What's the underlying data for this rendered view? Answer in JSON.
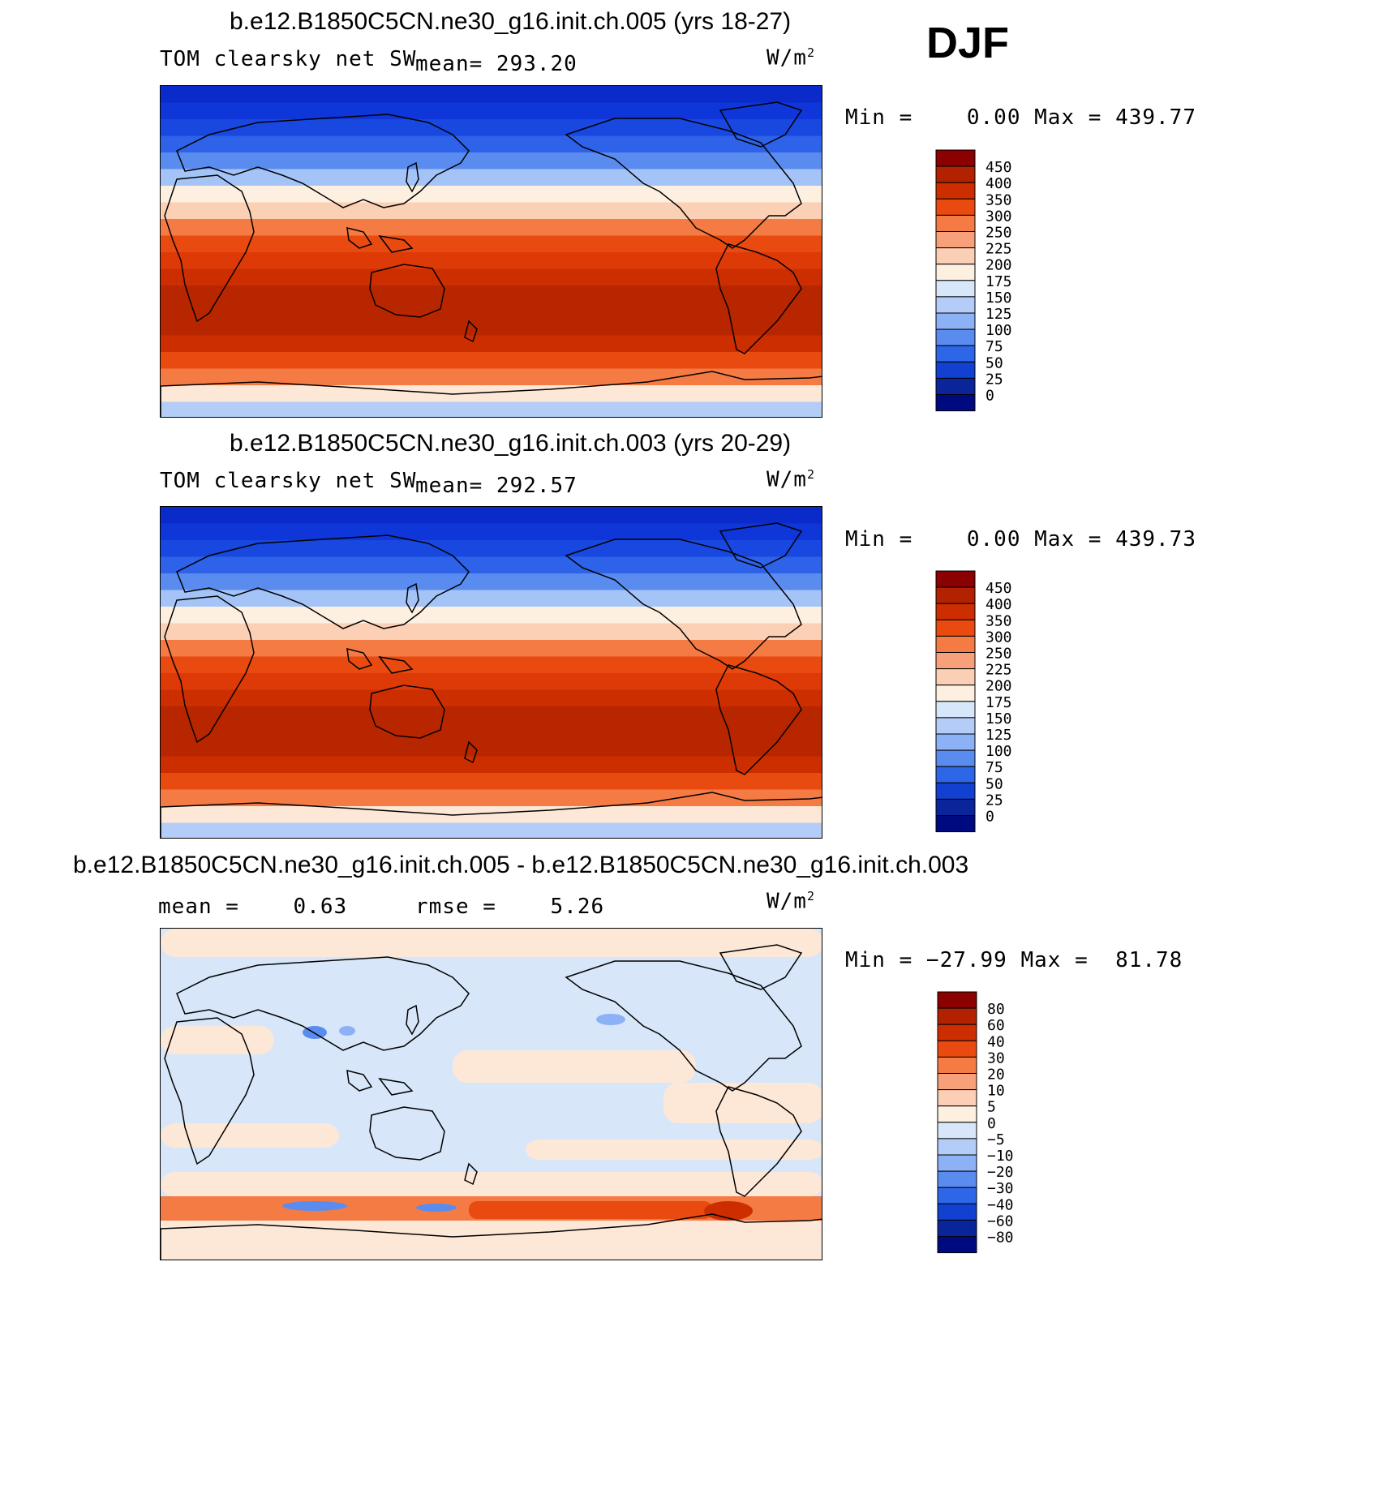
{
  "season": "DJF",
  "units_base": "W/m",
  "units_exp": "2",
  "panels": [
    {
      "title": "b.e12.B1850C5CN.ne30_g16.init.ch.005 (yrs 18-27)",
      "left_label": "TOM clearsky net SW",
      "stat1": "mean= 293.20",
      "stat2": "",
      "minmax": "Min =    0.00 Max = 439.77"
    },
    {
      "title": "b.e12.B1850C5CN.ne30_g16.init.ch.003 (yrs 20-29)",
      "left_label": "TOM clearsky net SW",
      "stat1": "mean= 292.57",
      "stat2": "",
      "minmax": "Min =    0.00 Max = 439.73"
    },
    {
      "title": "b.e12.B1850C5CN.ne30_g16.init.ch.005 - b.e12.B1850C5CN.ne30_g16.init.ch.003",
      "left_label": "mean =    0.63",
      "stat1": "rmse =    5.26",
      "stat2": "",
      "minmax": "Min = −27.99 Max =  81.78"
    }
  ],
  "colorbar_abs": {
    "labels": [
      "450",
      "400",
      "350",
      "300",
      "250",
      "225",
      "200",
      "175",
      "150",
      "125",
      "100",
      "75",
      "50",
      "25",
      "0"
    ],
    "colors": [
      "#8B0000",
      "#B22200",
      "#CC2E00",
      "#E84A10",
      "#F57B45",
      "#F8A07A",
      "#FBCFB5",
      "#FDF0E0",
      "#D7E6F8",
      "#B3CDF8",
      "#8CB1F5",
      "#5A8CF0",
      "#2E66E8",
      "#1240D0",
      "#0A249A",
      "#000A80"
    ]
  },
  "colorbar_diff": {
    "labels": [
      "80",
      "60",
      "40",
      "30",
      "20",
      "10",
      "5",
      "0",
      "−5",
      "−10",
      "−20",
      "−30",
      "−40",
      "−60",
      "−80"
    ],
    "colors": [
      "#8B0000",
      "#B22200",
      "#CC2E00",
      "#E84A10",
      "#F57B45",
      "#F8A07A",
      "#FBCFB5",
      "#FDF0E0",
      "#D7E6F8",
      "#B3CDF8",
      "#8CB1F5",
      "#5A8CF0",
      "#2E66E8",
      "#1240D0",
      "#0A249A",
      "#000A80"
    ]
  },
  "map_abs_bands": [
    "#0A2ACA",
    "#0E36D8",
    "#1848E0",
    "#2E62E8",
    "#5A8CF0",
    "#A4C4F8",
    "#FDF0E0",
    "#FBD0B5",
    "#F57B45",
    "#E84A10",
    "#DE3A08",
    "#CC2E00",
    "#B82600",
    "#B82600",
    "#B82600",
    "#CC2E00",
    "#E84A10",
    "#F57B45",
    "#FDE8D8",
    "#B3CDF8"
  ],
  "map_diff_bg": "#D7E6F8",
  "map_diff_warm": "#FDE8D8"
}
